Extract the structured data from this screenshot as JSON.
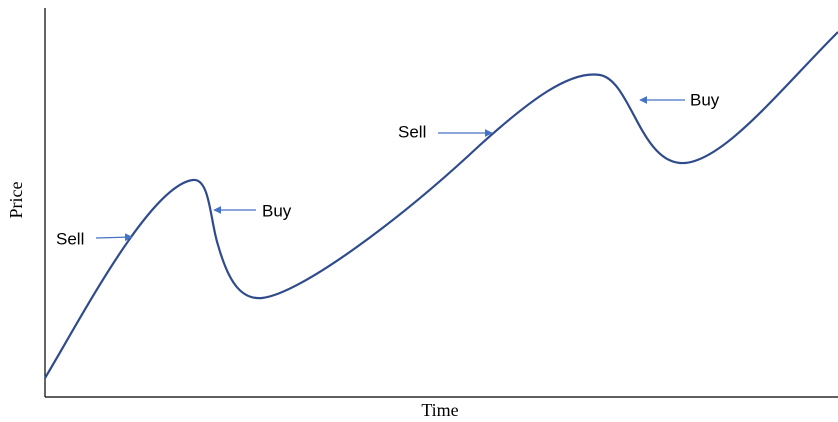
{
  "axes": {
    "y_label": "Price",
    "x_label": "Time"
  },
  "annotations": [
    {
      "label": "Sell"
    },
    {
      "label": "Buy"
    },
    {
      "label": "Sell"
    },
    {
      "label": "Buy"
    }
  ]
}
